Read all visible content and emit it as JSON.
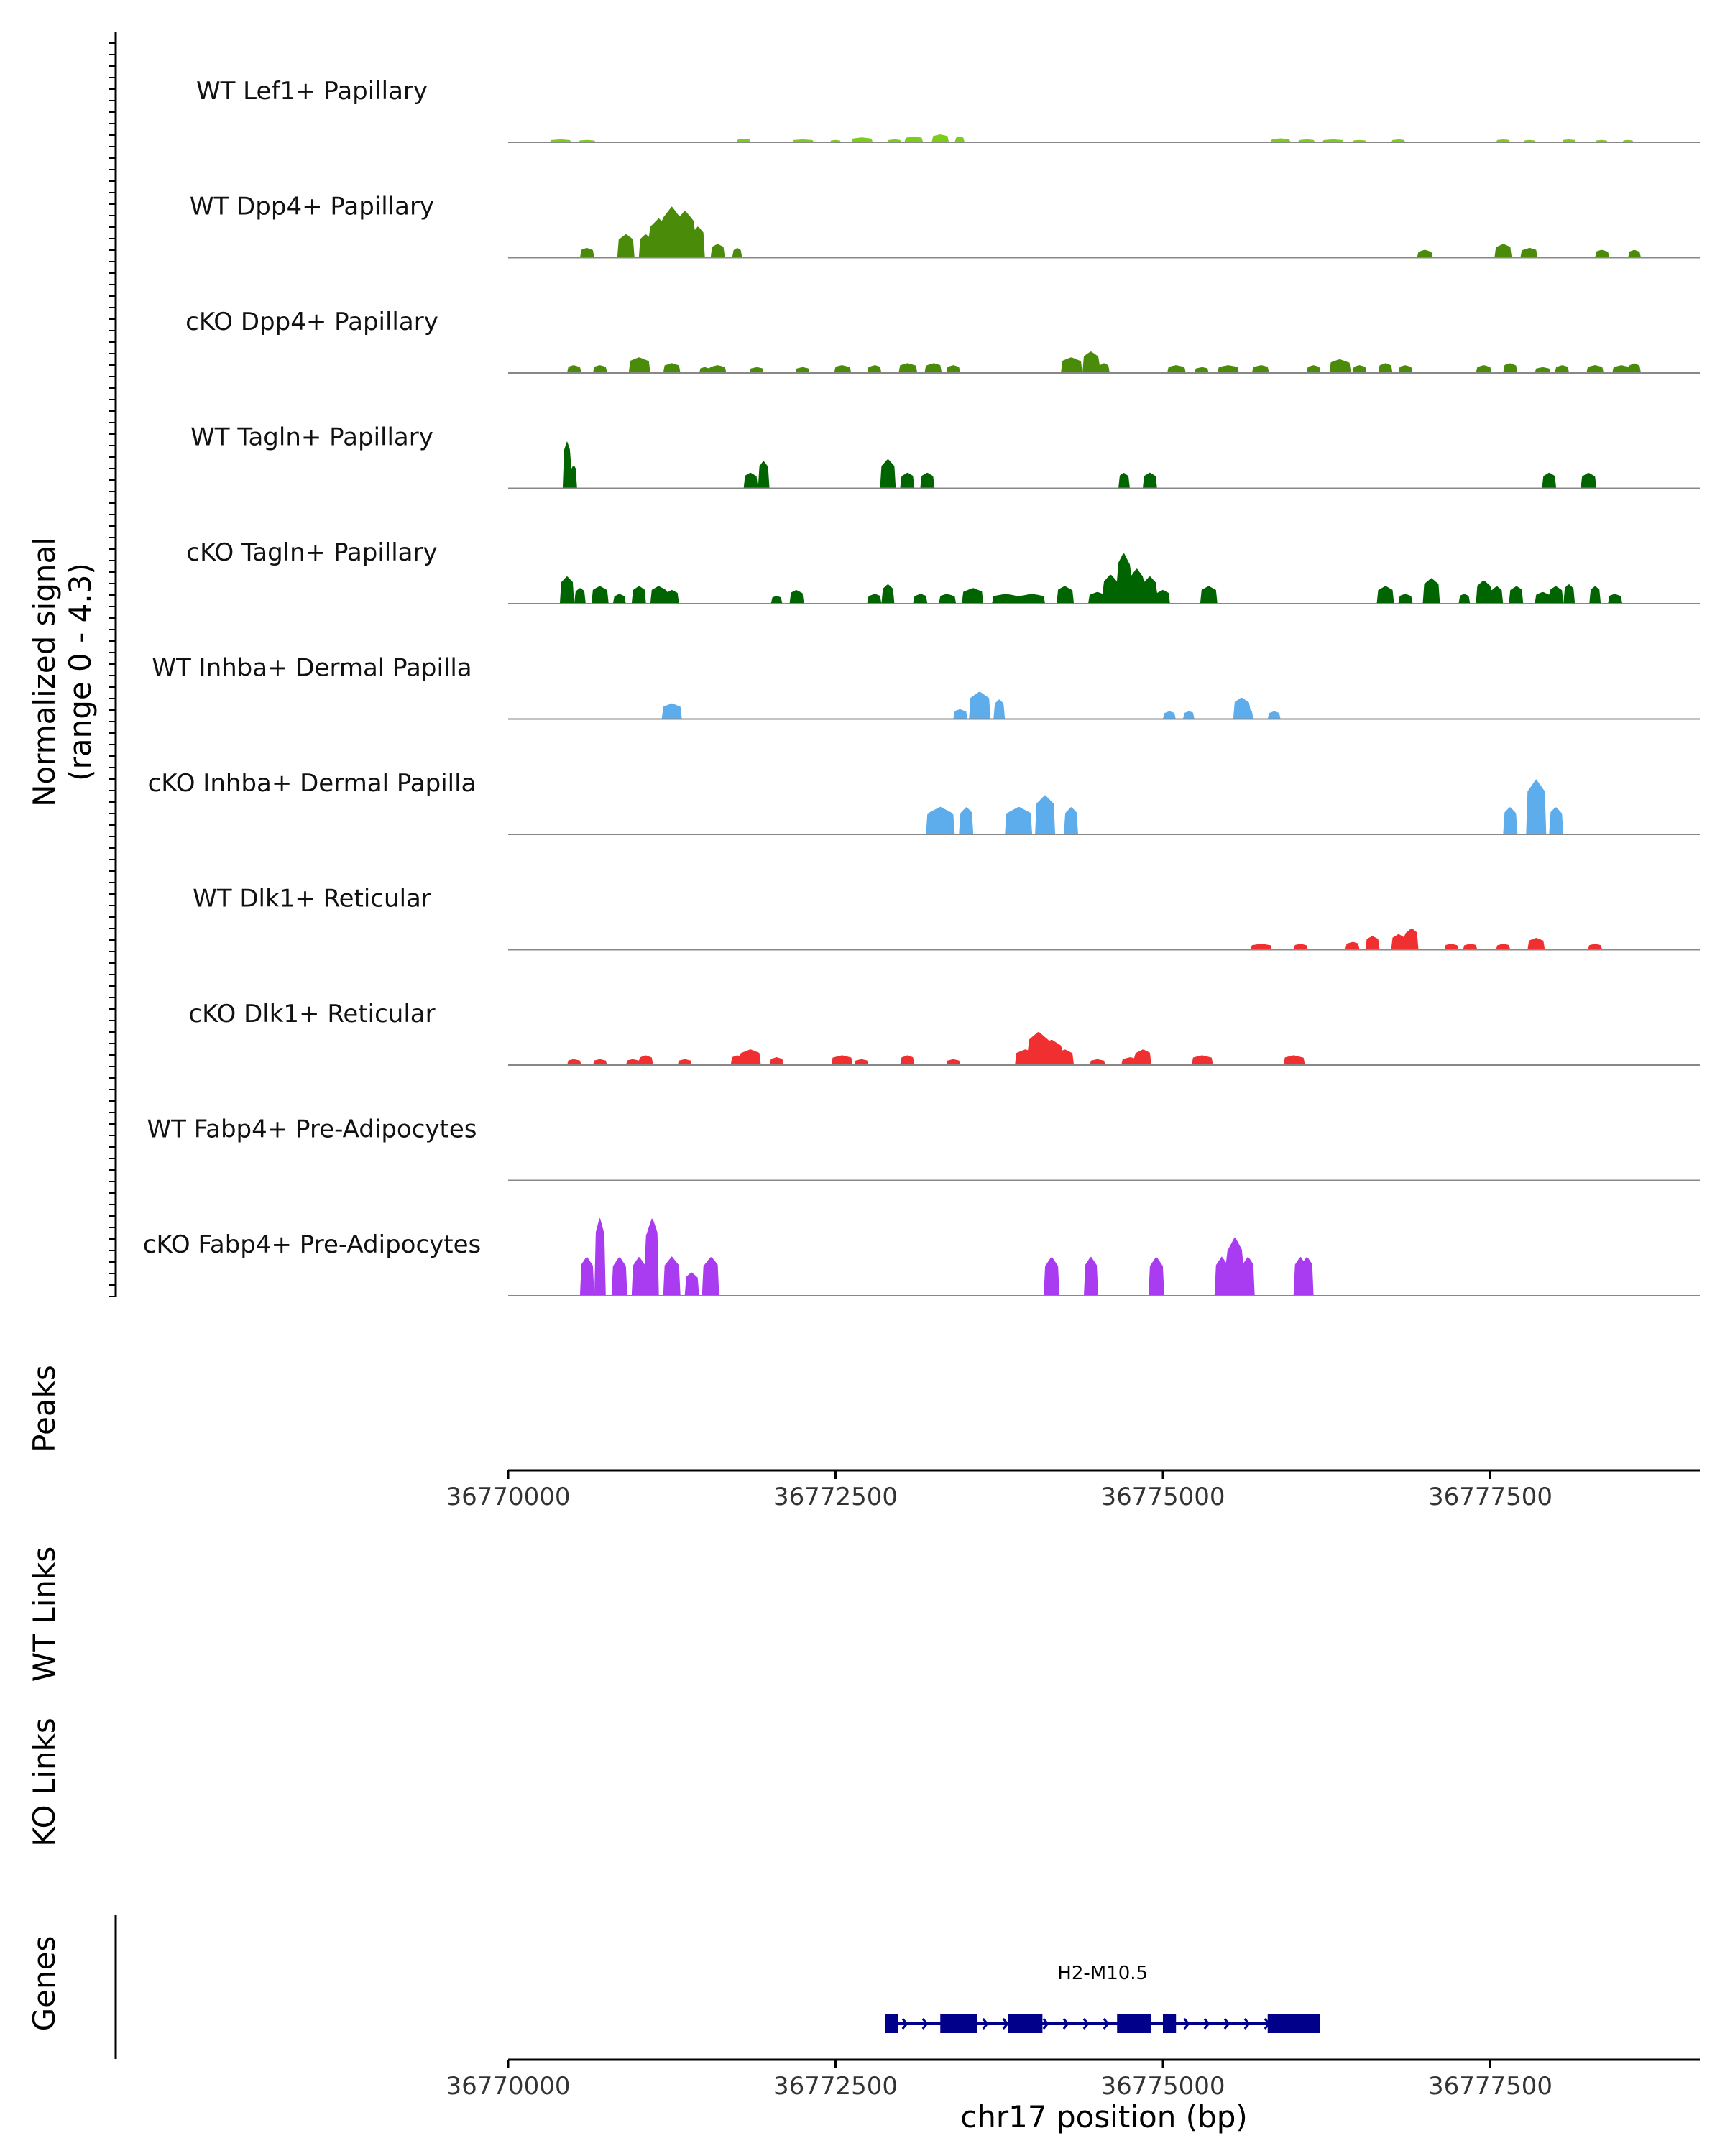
{
  "chart_data": {
    "type": "area",
    "chrom": "chr17",
    "xlim": [
      36770000,
      36779100
    ],
    "ylim": [
      0,
      4.3
    ],
    "y_axis_title": "Normalized signal",
    "y_axis_subtitle": "(range 0 - 4.3)",
    "x_axis_title": "chr17 position (bp)",
    "x_ticks": [
      36770000,
      36772500,
      36775000,
      36777500
    ],
    "x_tick_labels": [
      "36770000",
      "36772500",
      "36775000",
      "36777500"
    ],
    "tracks": [
      {
        "name": "WT Lef1+ Papillary",
        "color": "#7CCD1A",
        "peaks": [
          [
            36770400,
            0.15,
            150
          ],
          [
            36770600,
            0.12,
            120
          ],
          [
            36771800,
            0.18,
            100
          ],
          [
            36772250,
            0.15,
            150
          ],
          [
            36772500,
            0.12,
            80
          ],
          [
            36772700,
            0.25,
            150
          ],
          [
            36772950,
            0.15,
            100
          ],
          [
            36773100,
            0.3,
            130
          ],
          [
            36773300,
            0.4,
            130
          ],
          [
            36773450,
            0.3,
            60
          ],
          [
            36775900,
            0.2,
            150
          ],
          [
            36776100,
            0.15,
            120
          ],
          [
            36776300,
            0.15,
            150
          ],
          [
            36776500,
            0.12,
            100
          ],
          [
            36776800,
            0.15,
            100
          ],
          [
            36777600,
            0.15,
            100
          ],
          [
            36777800,
            0.12,
            80
          ],
          [
            36778100,
            0.15,
            100
          ],
          [
            36778350,
            0.12,
            80
          ],
          [
            36778550,
            0.12,
            80
          ]
        ]
      },
      {
        "name": "WT Dpp4+ Papillary",
        "color": "#4A8C0A",
        "peaks": [
          [
            36770600,
            0.5,
            100
          ],
          [
            36770900,
            1.2,
            120
          ],
          [
            36771050,
            1.2,
            100
          ],
          [
            36771150,
            2.0,
            150
          ],
          [
            36771250,
            2.6,
            150
          ],
          [
            36771350,
            2.4,
            150
          ],
          [
            36771450,
            1.6,
            100
          ],
          [
            36771600,
            0.7,
            100
          ],
          [
            36771750,
            0.5,
            60
          ],
          [
            36777000,
            0.4,
            100
          ],
          [
            36777600,
            0.7,
            120
          ],
          [
            36777800,
            0.5,
            120
          ],
          [
            36778350,
            0.4,
            100
          ],
          [
            36778600,
            0.4,
            80
          ]
        ]
      },
      {
        "name": "cKO Dpp4+ Papillary",
        "color": "#4A8C0A",
        "peaks": [
          [
            36770500,
            0.4,
            100
          ],
          [
            36770700,
            0.4,
            100
          ],
          [
            36771000,
            0.8,
            150
          ],
          [
            36771250,
            0.5,
            120
          ],
          [
            36771500,
            0.3,
            80
          ],
          [
            36771600,
            0.4,
            120
          ],
          [
            36771900,
            0.3,
            100
          ],
          [
            36772250,
            0.3,
            100
          ],
          [
            36772550,
            0.4,
            120
          ],
          [
            36772800,
            0.4,
            100
          ],
          [
            36773050,
            0.5,
            130
          ],
          [
            36773250,
            0.5,
            120
          ],
          [
            36773400,
            0.4,
            100
          ],
          [
            36774300,
            0.8,
            150
          ],
          [
            36774450,
            1.1,
            120
          ],
          [
            36774550,
            0.5,
            80
          ],
          [
            36775100,
            0.4,
            130
          ],
          [
            36775300,
            0.3,
            100
          ],
          [
            36775500,
            0.4,
            150
          ],
          [
            36775750,
            0.4,
            120
          ],
          [
            36776150,
            0.4,
            100
          ],
          [
            36776350,
            0.7,
            150
          ],
          [
            36776500,
            0.4,
            100
          ],
          [
            36776700,
            0.5,
            100
          ],
          [
            36776850,
            0.4,
            100
          ],
          [
            36777450,
            0.4,
            100
          ],
          [
            36777650,
            0.5,
            100
          ],
          [
            36777900,
            0.3,
            100
          ],
          [
            36778050,
            0.4,
            100
          ],
          [
            36778300,
            0.4,
            120
          ],
          [
            36778500,
            0.4,
            120
          ],
          [
            36778600,
            0.5,
            80
          ]
        ]
      },
      {
        "name": "WT Tagln+ Papillary",
        "color": "#006400",
        "peaks": [
          [
            36770450,
            2.4,
            60
          ],
          [
            36770500,
            1.2,
            50
          ],
          [
            36771850,
            0.8,
            100
          ],
          [
            36771950,
            1.4,
            80
          ],
          [
            36772900,
            1.5,
            100
          ],
          [
            36773050,
            0.8,
            100
          ],
          [
            36773200,
            0.8,
            100
          ],
          [
            36774700,
            0.8,
            80
          ],
          [
            36774900,
            0.8,
            100
          ],
          [
            36777950,
            0.8,
            100
          ],
          [
            36778250,
            0.8,
            100
          ]
        ]
      },
      {
        "name": "cKO Tagln+ Papillary",
        "color": "#006400",
        "peaks": [
          [
            36770450,
            1.4,
            100
          ],
          [
            36770550,
            0.8,
            80
          ],
          [
            36770700,
            0.9,
            120
          ],
          [
            36770850,
            0.5,
            80
          ],
          [
            36771000,
            0.9,
            100
          ],
          [
            36771150,
            0.9,
            120
          ],
          [
            36771250,
            0.7,
            100
          ],
          [
            36772200,
            0.7,
            100
          ],
          [
            36772050,
            0.4,
            80
          ],
          [
            36772800,
            0.5,
            100
          ],
          [
            36772900,
            1.0,
            80
          ],
          [
            36773150,
            0.5,
            100
          ],
          [
            36773350,
            0.5,
            120
          ],
          [
            36773550,
            0.8,
            150
          ],
          [
            36773800,
            0.5,
            200
          ],
          [
            36774000,
            0.5,
            200
          ],
          [
            36774250,
            0.9,
            120
          ],
          [
            36774500,
            0.6,
            120
          ],
          [
            36774600,
            1.5,
            100
          ],
          [
            36774700,
            2.6,
            100
          ],
          [
            36774800,
            1.8,
            100
          ],
          [
            36774900,
            1.4,
            100
          ],
          [
            36775000,
            0.7,
            100
          ],
          [
            36775350,
            0.9,
            120
          ],
          [
            36776700,
            0.9,
            120
          ],
          [
            36776850,
            0.5,
            100
          ],
          [
            36777050,
            1.3,
            120
          ],
          [
            36777300,
            0.5,
            80
          ],
          [
            36777450,
            1.2,
            100
          ],
          [
            36777550,
            0.9,
            80
          ],
          [
            36777700,
            0.9,
            100
          ],
          [
            36777900,
            0.6,
            100
          ],
          [
            36778000,
            0.9,
            100
          ],
          [
            36778100,
            1.0,
            80
          ],
          [
            36778300,
            0.9,
            80
          ],
          [
            36778450,
            0.5,
            100
          ]
        ]
      },
      {
        "name": "WT Inhba+ Dermal Papilla",
        "color": "#5DADEC",
        "peaks": [
          [
            36771250,
            0.8,
            150
          ],
          [
            36773450,
            0.5,
            100
          ],
          [
            36773600,
            1.4,
            150
          ],
          [
            36773750,
            1.0,
            80
          ],
          [
            36775050,
            0.4,
            80
          ],
          [
            36775200,
            0.4,
            80
          ],
          [
            36775600,
            1.1,
            120
          ],
          [
            36775650,
            0.5,
            80
          ],
          [
            36775850,
            0.4,
            80
          ]
        ]
      },
      {
        "name": "cKO Inhba+ Dermal Papilla",
        "color": "#5DADEC",
        "peaks": [
          [
            36773300,
            1.4,
            200
          ],
          [
            36773500,
            1.4,
            100
          ],
          [
            36773900,
            1.4,
            200
          ],
          [
            36774100,
            2.0,
            150
          ],
          [
            36774300,
            1.4,
            100
          ],
          [
            36777650,
            1.4,
            100
          ],
          [
            36777850,
            2.8,
            150
          ],
          [
            36778000,
            1.4,
            100
          ]
        ]
      },
      {
        "name": "WT Dlk1+ Reticular",
        "color": "#F03030",
        "peaks": [
          [
            36775750,
            0.3,
            150
          ],
          [
            36776050,
            0.3,
            100
          ],
          [
            36776450,
            0.4,
            100
          ],
          [
            36776600,
            0.7,
            100
          ],
          [
            36776800,
            0.8,
            100
          ],
          [
            36776900,
            1.1,
            100
          ],
          [
            36777200,
            0.3,
            100
          ],
          [
            36777350,
            0.3,
            100
          ],
          [
            36777600,
            0.3,
            100
          ],
          [
            36777850,
            0.6,
            120
          ],
          [
            36778300,
            0.3,
            100
          ]
        ]
      },
      {
        "name": "cKO Dlk1+ Reticular",
        "color": "#F03030",
        "peaks": [
          [
            36770500,
            0.3,
            100
          ],
          [
            36770700,
            0.3,
            100
          ],
          [
            36770950,
            0.3,
            100
          ],
          [
            36771050,
            0.5,
            100
          ],
          [
            36771350,
            0.3,
            100
          ],
          [
            36771750,
            0.5,
            100
          ],
          [
            36771850,
            0.8,
            150
          ],
          [
            36772050,
            0.4,
            100
          ],
          [
            36772550,
            0.5,
            150
          ],
          [
            36772700,
            0.3,
            100
          ],
          [
            36773050,
            0.5,
            100
          ],
          [
            36773400,
            0.3,
            100
          ],
          [
            36773950,
            0.8,
            150
          ],
          [
            36774050,
            1.7,
            150
          ],
          [
            36774150,
            1.3,
            150
          ],
          [
            36774250,
            0.8,
            120
          ],
          [
            36774500,
            0.3,
            100
          ],
          [
            36774750,
            0.4,
            120
          ],
          [
            36774850,
            0.8,
            120
          ],
          [
            36775300,
            0.5,
            150
          ],
          [
            36776000,
            0.5,
            150
          ]
        ]
      },
      {
        "name": "WT Fabp4+ Pre-Adipocytes",
        "color": "#A93BF0",
        "peaks": []
      },
      {
        "name": "cKO Fabp4+ Pre-Adipocytes",
        "color": "#A93BF0",
        "peaks": [
          [
            36770600,
            2.0,
            100
          ],
          [
            36770700,
            4.0,
            80
          ],
          [
            36770850,
            2.0,
            100
          ],
          [
            36771000,
            2.0,
            100
          ],
          [
            36771100,
            4.0,
            100
          ],
          [
            36771250,
            2.0,
            120
          ],
          [
            36771400,
            1.2,
            100
          ],
          [
            36771550,
            2.0,
            120
          ],
          [
            36774150,
            2.0,
            100
          ],
          [
            36774450,
            2.0,
            100
          ],
          [
            36774950,
            2.0,
            100
          ],
          [
            36775450,
            2.0,
            100
          ],
          [
            36775550,
            3.0,
            120
          ],
          [
            36775650,
            2.0,
            100
          ],
          [
            36776050,
            2.0,
            100
          ],
          [
            36776100,
            2.0,
            100
          ]
        ]
      }
    ],
    "panels": [
      "Peaks",
      "WT Links",
      "KO Links",
      "Genes"
    ],
    "gene": {
      "name": "H2-M10.5",
      "start": 36772880,
      "end": 36776200,
      "strand": "+",
      "exons": [
        [
          36772880,
          36772980
        ],
        [
          36773300,
          36773580
        ],
        [
          36773820,
          36774080
        ],
        [
          36774650,
          36774910
        ],
        [
          36775000,
          36775100
        ],
        [
          36775800,
          36776200
        ]
      ]
    }
  }
}
